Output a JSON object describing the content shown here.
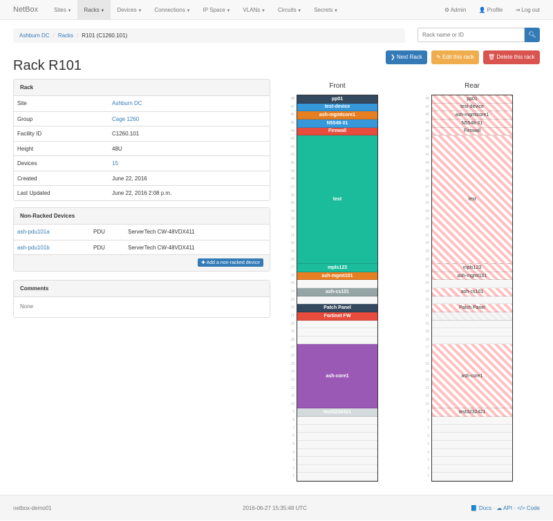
{
  "nav": {
    "brand": "NetBox",
    "items": [
      "Sites",
      "Racks",
      "Devices",
      "Connections",
      "IP Space",
      "VLANs",
      "Circuits",
      "Secrets"
    ],
    "active": "Racks",
    "admin": "Admin",
    "profile": "Profile",
    "logout": "Log out"
  },
  "breadcrumb": [
    "Ashburn DC",
    "Racks",
    "R101 (C1260.101)"
  ],
  "search": {
    "placeholder": "Rack name or ID"
  },
  "actions": {
    "next": "Next Rack",
    "edit": "Edit this rack",
    "delete": "Delete this rack"
  },
  "title": "Rack R101",
  "rack_panel": {
    "heading": "Rack",
    "rows": [
      {
        "label": "Site",
        "value": "Ashburn DC",
        "link": true
      },
      {
        "label": "Group",
        "value": "Cage 1260",
        "link": true
      },
      {
        "label": "Facility ID",
        "value": "C1260.101"
      },
      {
        "label": "Height",
        "value": "48U"
      },
      {
        "label": "Devices",
        "value": "15",
        "link": true
      },
      {
        "label": "Created",
        "value": "June 22, 2016"
      },
      {
        "label": "Last Updated",
        "value": "June 22, 2016 2:08 p.m."
      }
    ]
  },
  "nonracked": {
    "heading": "Non-Racked Devices",
    "rows": [
      {
        "name": "ash-pdu101a",
        "role": "PDU",
        "type": "ServerTech CW-48VDX411"
      },
      {
        "name": "ash-pdu101b",
        "role": "PDU",
        "type": "ServerTech CW-48VDX411"
      }
    ],
    "add_label": "Add a non-racked device"
  },
  "comments": {
    "heading": "Comments",
    "body": "None"
  },
  "rack": {
    "height": 48,
    "front_label": "Front",
    "rear_label": "Rear",
    "devices": [
      {
        "name": "pp01",
        "top": 48,
        "size": 1,
        "color": "#34495e",
        "rear": true
      },
      {
        "name": "test-device",
        "top": 47,
        "size": 1,
        "color": "#3498db",
        "rear": true
      },
      {
        "name": "ash-mgmtcore1",
        "top": 46,
        "size": 1,
        "color": "#e67e22",
        "rear": true
      },
      {
        "name": "N5548-01",
        "top": 45,
        "size": 1,
        "color": "#3498db",
        "rear": true
      },
      {
        "name": "Firewall",
        "top": 44,
        "size": 1,
        "color": "#e74c3c",
        "rear": true
      },
      {
        "name": "test",
        "top": 43,
        "size": 16,
        "color": "#1abc9c",
        "rear": true
      },
      {
        "name": "mpls123",
        "top": 27,
        "size": 1,
        "color": "#1abc9c",
        "rear": true
      },
      {
        "name": "ash-mgmt101",
        "top": 26,
        "size": 1,
        "color": "#e67e22",
        "rear": true
      },
      {
        "name": "ash-cs101",
        "top": 24,
        "size": 1,
        "color": "#95a5a6",
        "rear": true
      },
      {
        "name": "Patch Panel",
        "top": 22,
        "size": 1,
        "color": "#34495e",
        "rear": true
      },
      {
        "name": "Fortinet FW",
        "top": 21,
        "size": 1,
        "color": "#e74c3c",
        "rear": false
      },
      {
        "name": "ash-core1",
        "top": 17,
        "size": 8,
        "color": "#9b59b6",
        "rear": true
      },
      {
        "name": "test3232421",
        "top": 9,
        "size": 1,
        "color": "#d5dbdd",
        "rear": true
      }
    ]
  },
  "footer": {
    "hostname": "netbox-demo01",
    "timestamp": "2016-06-27 15:35:48 UTC",
    "docs": "Docs",
    "api": "API",
    "code": "Code"
  }
}
